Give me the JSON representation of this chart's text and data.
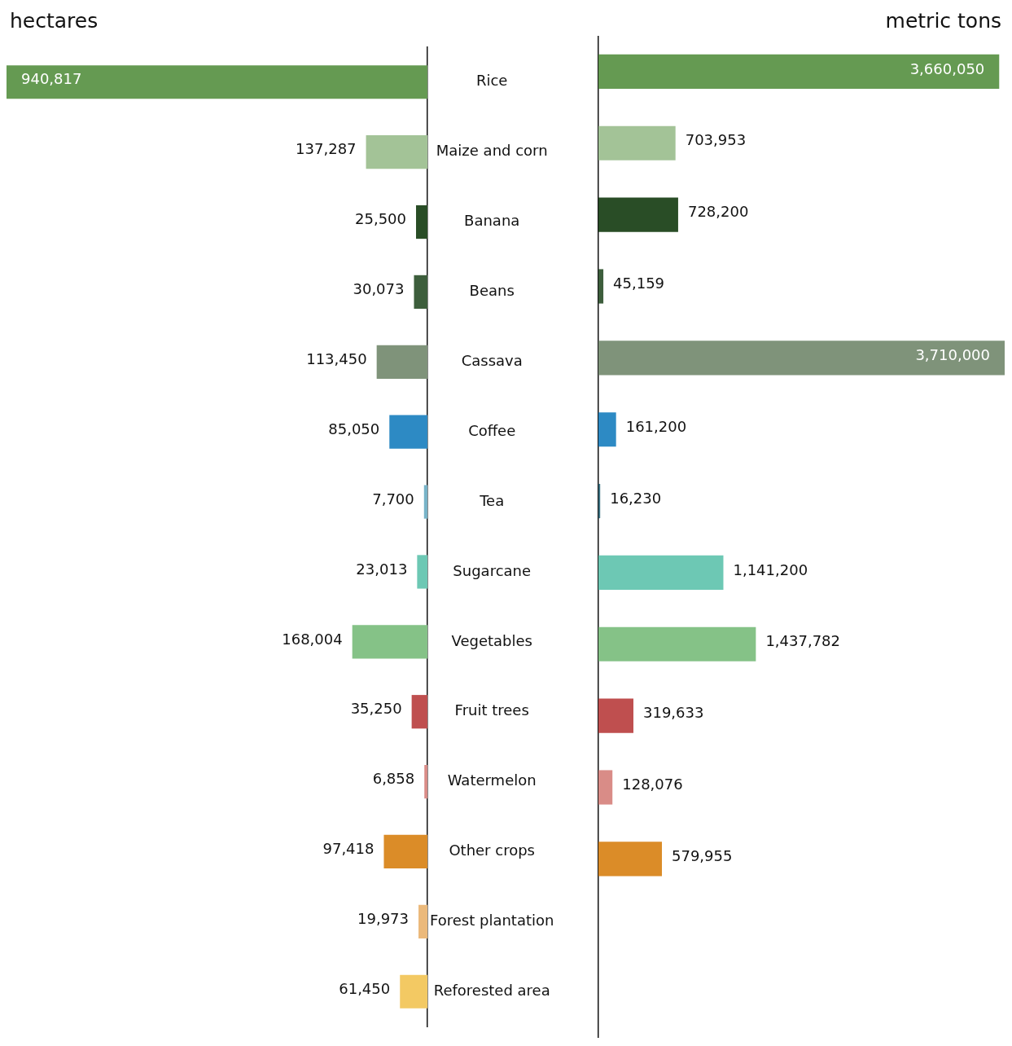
{
  "chart_data": [
    {
      "type": "bar",
      "orientation": "horizontal",
      "xlabel": "hectares",
      "categories": [
        "Rice",
        "Maize and corn",
        "Banana",
        "Beans",
        "Cassava",
        "Coffee",
        "Tea",
        "Sugarcane",
        "Vegetables",
        "Fruit trees",
        "Watermelon",
        "Other crops",
        "Forest plantation",
        "Reforested area"
      ],
      "values": [
        940817,
        137287,
        25500,
        30073,
        113450,
        85050,
        7700,
        23013,
        168004,
        35250,
        6858,
        97418,
        19973,
        61450
      ],
      "value_labels": [
        "940,817",
        "137,287",
        "25,500",
        "30,073",
        "113,450",
        "85,050",
        "7,700",
        "23,013",
        "168,004",
        "35,250",
        "6,858",
        "97,418",
        "19,973",
        "61,450"
      ],
      "colors": [
        "#659a52",
        "#a3c397",
        "#294d26",
        "#3d5e3c",
        "#7f937a",
        "#2d8ac4",
        "#78b3c8",
        "#6dc8b4",
        "#85c287",
        "#bf4f4f",
        "#d98c87",
        "#db8c28",
        "#ebb97b",
        "#f3c963"
      ],
      "tick_labels": "y",
      "grid": false,
      "legend": false
    },
    {
      "type": "bar",
      "orientation": "horizontal",
      "xlabel": "metric tons",
      "values": [
        3660050,
        703953,
        728200,
        45159,
        3710000,
        161200,
        16230,
        1141200,
        1437782,
        319633,
        128076,
        579955,
        null,
        null
      ],
      "value_labels": [
        "3,660,050",
        "703,953",
        "728,200",
        "45,159",
        "3,710,000",
        "161,200",
        "16,230",
        "1,141,200",
        "1,437,782",
        "319,633",
        "128,076",
        "579,955",
        null,
        null
      ],
      "colors": [
        "#659a52",
        "#a3c397",
        "#294d26",
        "#3d5e3c",
        "#7f937a",
        "#2d8ac4",
        "#3a6f80",
        "#6dc8b4",
        "#85c287",
        "#bf4f4f",
        "#d98c87",
        "#db8c28",
        "#ebb97b",
        "#f3c963"
      ],
      "tick_labels": false,
      "grid": false,
      "legend": false
    }
  ]
}
